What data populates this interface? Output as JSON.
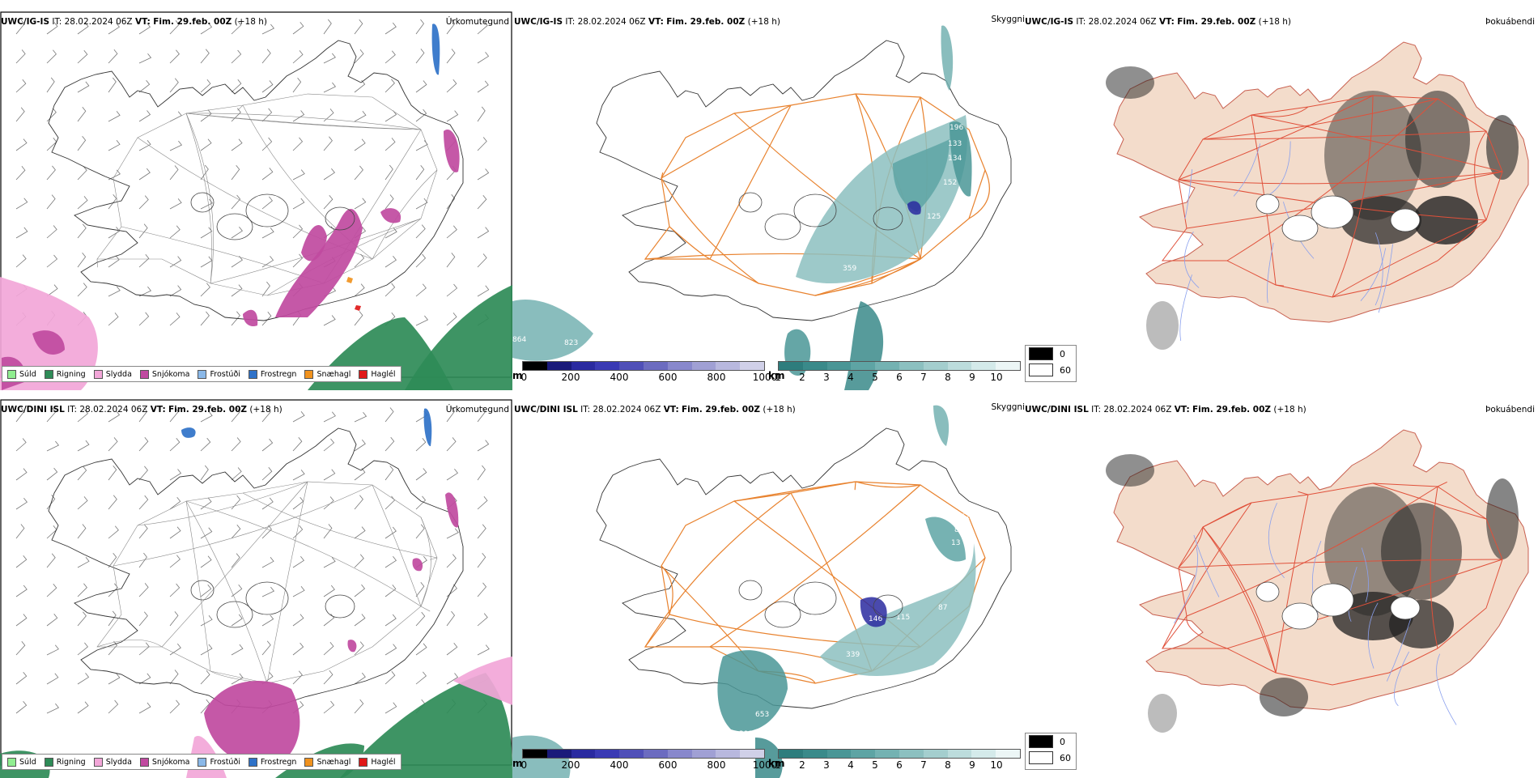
{
  "rows": [
    {
      "model": "UWC/IG-IS",
      "it_label": "IT:",
      "it_value": "28.02.2024 06Z",
      "vt_label": "VT:",
      "vt_value": "Fim. 29.feb. 00Z",
      "lead": "(+18 h)"
    },
    {
      "model": "UWC/DINI ISL",
      "it_label": "IT:",
      "it_value": "28.02.2024 06Z",
      "vt_label": "VT:",
      "vt_value": "Fim. 29.feb. 00Z",
      "lead": "(+18 h)"
    }
  ],
  "panel_titles": {
    "precip": "Úrkomutegund",
    "visibility": "Skyggni",
    "cloud": "Þokuábendi"
  },
  "precip_legend": [
    {
      "label": "Súld",
      "color": "#90ee90"
    },
    {
      "label": "Rigning",
      "color": "#2e8b57"
    },
    {
      "label": "Slydda",
      "color": "#f2a6d8"
    },
    {
      "label": "Snjókoma",
      "color": "#c04aa0"
    },
    {
      "label": "Frostúði",
      "color": "#8ab8e8"
    },
    {
      "label": "Frostregn",
      "color": "#2f72c8"
    },
    {
      "label": "Snæhagl",
      "color": "#f0921e"
    },
    {
      "label": "Haglél",
      "color": "#e01818"
    }
  ],
  "visibility_bar_m": {
    "unit": "m",
    "ticks": [
      "0",
      "200",
      "400",
      "600",
      "800",
      "1000"
    ],
    "colors": [
      "#000000",
      "#1a1a7a",
      "#2a2aa0",
      "#3a3ab4",
      "#5050b8",
      "#6c6cc0",
      "#8888cc",
      "#a0a0d4",
      "#b8b8de",
      "#d0d0e8"
    ]
  },
  "visibility_bar_km": {
    "unit": "km",
    "ticks": [
      "1",
      "2",
      "3",
      "4",
      "5",
      "6",
      "7",
      "8",
      "9",
      "10"
    ],
    "colors": [
      "#2e7d7d",
      "#3a8a8a",
      "#4a9696",
      "#5ea4a4",
      "#74b2b2",
      "#8cc0c0",
      "#a4cece",
      "#bcdcdc",
      "#d4eaea",
      "#ecf6f6"
    ]
  },
  "visibility_labels_top": [
    "196",
    "133",
    "134",
    "152",
    "125",
    "359",
    "864",
    "823",
    "826"
  ],
  "visibility_labels_bottom": [
    "152",
    "84",
    "13",
    "146",
    "115",
    "120",
    "87",
    "653",
    "391",
    "339"
  ],
  "cloud_legend": [
    {
      "label": "0",
      "color": "#000000"
    },
    {
      "label": "60",
      "color": "#ffffff"
    }
  ]
}
